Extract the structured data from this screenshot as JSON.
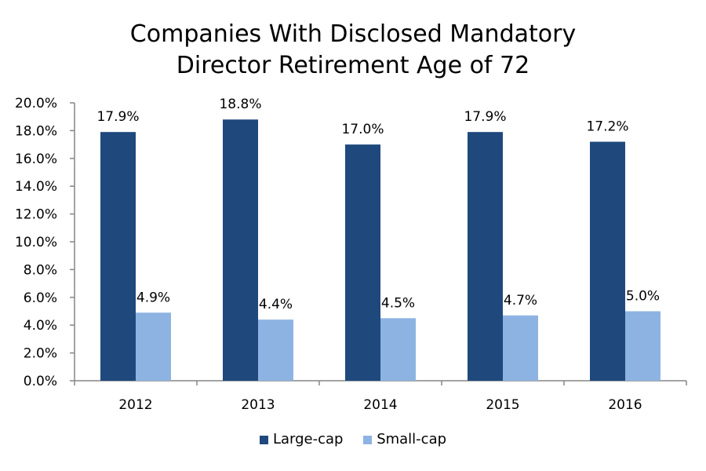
{
  "chart_data": {
    "type": "bar",
    "title_lines": [
      "Companies With Disclosed Mandatory",
      "Director Retirement Age of 72"
    ],
    "xlabel": "",
    "ylabel": "",
    "categories": [
      "2012",
      "2013",
      "2014",
      "2015",
      "2016"
    ],
    "series": [
      {
        "name": "Large-cap",
        "color": "#1f497d",
        "values": [
          17.9,
          18.8,
          17.0,
          17.9,
          17.2
        ],
        "labels": [
          "17.9%",
          "18.8%",
          "17.0%",
          "17.9%",
          "17.2%"
        ]
      },
      {
        "name": "Small-cap",
        "color": "#8db3e2",
        "values": [
          4.9,
          4.4,
          4.5,
          4.7,
          5.0
        ],
        "labels": [
          "4.9%",
          "4.4%",
          "4.5%",
          "4.7%",
          "5.0%"
        ]
      }
    ],
    "ylim": [
      0,
      20
    ],
    "yticks": [
      0,
      2,
      4,
      6,
      8,
      10,
      12,
      14,
      16,
      18,
      20
    ],
    "ytick_labels": [
      "0.0%",
      "2.0%",
      "4.0%",
      "6.0%",
      "8.0%",
      "10.0%",
      "12.0%",
      "14.0%",
      "16.0%",
      "18.0%",
      "20.0%"
    ],
    "grid": false,
    "legend_position": "bottom-center",
    "axis_color": "#868686"
  }
}
